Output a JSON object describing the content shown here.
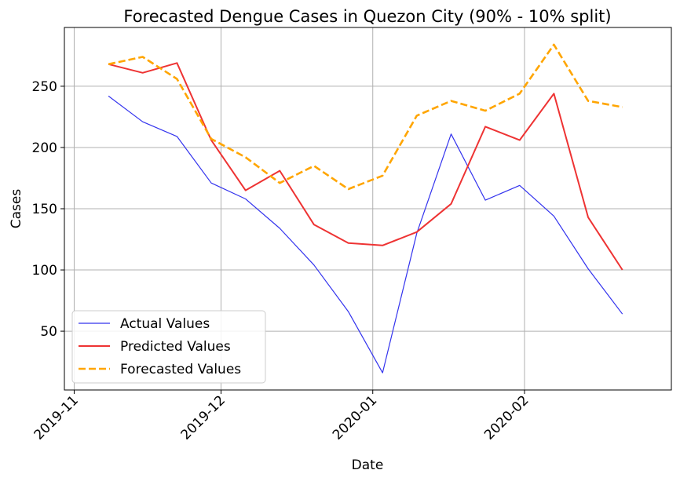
{
  "chart_data": {
    "type": "line",
    "title": "Forecasted Dengue Cases in Quezon City (90% - 10% split)",
    "xlabel": "Date",
    "ylabel": "Cases",
    "x_dates": [
      "2019-11-08",
      "2019-11-15",
      "2019-11-22",
      "2019-11-29",
      "2019-12-06",
      "2019-12-13",
      "2019-12-20",
      "2019-12-27",
      "2020-01-03",
      "2020-01-10",
      "2020-01-17",
      "2020-01-24",
      "2020-01-31",
      "2020-02-07",
      "2020-02-14",
      "2020-02-21"
    ],
    "xlim": [
      "2019-10-30",
      "2020-03-02"
    ],
    "ylim": [
      2,
      298
    ],
    "x_ticks": [
      {
        "date": "2019-11-01",
        "label": "2019-11"
      },
      {
        "date": "2019-12-01",
        "label": "2019-12"
      },
      {
        "date": "2020-01-01",
        "label": "2020-01"
      },
      {
        "date": "2020-02-01",
        "label": "2020-02"
      }
    ],
    "y_ticks": [
      50,
      100,
      150,
      200,
      250
    ],
    "y_tick_labels": [
      "50",
      "100",
      "150",
      "200",
      "250"
    ],
    "grid": true,
    "legend_position": "lower-left",
    "series": [
      {
        "name": "Actual Values",
        "color": "#3333ee",
        "style": "solid",
        "width": 1.2,
        "values": [
          242,
          221,
          209,
          171,
          158,
          134,
          104,
          66,
          16,
          130,
          211,
          157,
          169,
          144,
          101,
          64
        ]
      },
      {
        "name": "Predicted Values",
        "color": "#ee3333",
        "style": "solid",
        "width": 2,
        "values": [
          268,
          261,
          269,
          206,
          165,
          181,
          137,
          122,
          120,
          131,
          154,
          217,
          206,
          244,
          143,
          100
        ]
      },
      {
        "name": "Forecasted Values",
        "color": "#ffa500",
        "style": "dashed",
        "width": 2.6,
        "values": [
          268,
          274,
          256,
          207,
          192,
          171,
          185,
          166,
          177,
          226,
          238,
          230,
          244,
          284,
          238,
          233
        ]
      }
    ]
  }
}
